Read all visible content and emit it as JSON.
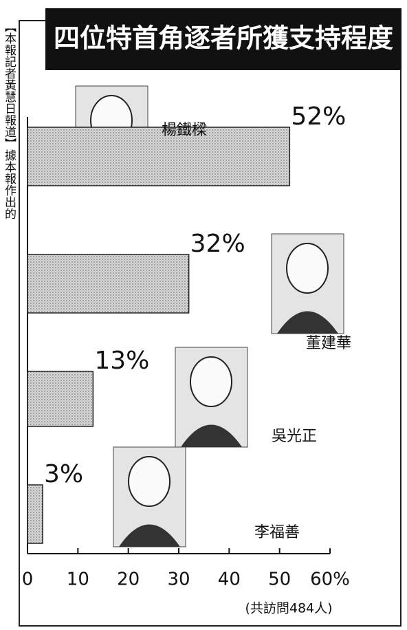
{
  "side_text": "【本報記者黃慧日報道】據本報作出的",
  "chart_data": {
    "type": "hbar",
    "title": "四位特首角逐者所獲支持程度",
    "categories": [
      "楊鐵樑",
      "董建華",
      "吳光正",
      "李福善"
    ],
    "values": [
      52,
      32,
      13,
      3
    ],
    "value_labels": [
      "52%",
      "32%",
      "13%",
      "3%"
    ],
    "color": "#bdbdbd",
    "xlim": [
      0,
      60
    ],
    "xticks": [
      0,
      10,
      20,
      30,
      40,
      50,
      {
        "value": 60,
        "label": "60%"
      }
    ],
    "note": "(共訪問484人)"
  }
}
